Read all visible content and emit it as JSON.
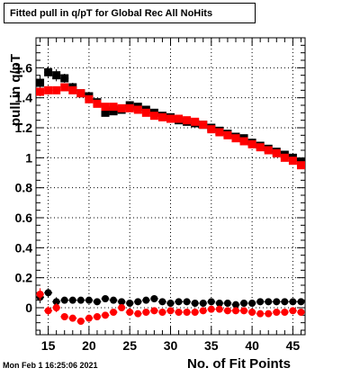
{
  "chart_data": {
    "type": "scatter",
    "title": "Fitted pull in q/pT for Global Rec All NoHits",
    "xlabel": "No. of Fit Points",
    "ylabel": "pull in q/pT",
    "timestamp": "Mon Feb  1 16:25:06 2021",
    "xlim": [
      13.5,
      46.5
    ],
    "ylim": [
      -0.18,
      1.8
    ],
    "grid": true,
    "x_ticks": [
      15,
      20,
      25,
      30,
      35,
      40,
      45
    ],
    "y_ticks": [
      0,
      0.2,
      0.4,
      0.6,
      0.8,
      1,
      1.2,
      1.4,
      1.6
    ],
    "y_tick_labels": [
      "0",
      "0.2",
      "0.4",
      "0.6",
      "0.8",
      "1",
      "1.2",
      "1.4",
      "1.6"
    ],
    "series": [
      {
        "marker": "square",
        "color": "#000000",
        "x": [
          14,
          15,
          16,
          17,
          18,
          19,
          20,
          21,
          22,
          23,
          24,
          25,
          26,
          27,
          28,
          29,
          30,
          31,
          32,
          33,
          34,
          35,
          36,
          37,
          38,
          39,
          40,
          41,
          42,
          43,
          44,
          45,
          46
        ],
        "y": [
          1.5,
          1.57,
          1.55,
          1.53,
          1.47,
          1.43,
          1.41,
          1.37,
          1.3,
          1.31,
          1.32,
          1.35,
          1.34,
          1.32,
          1.3,
          1.28,
          1.27,
          1.25,
          1.24,
          1.23,
          1.22,
          1.2,
          1.18,
          1.16,
          1.14,
          1.13,
          1.1,
          1.08,
          1.06,
          1.04,
          1.02,
          1.0,
          0.97
        ],
        "yerr": [
          0.05,
          0.04,
          0.04,
          0.03,
          0.03,
          0.02,
          0.02,
          0.02,
          0.01,
          0.01,
          0.01,
          0.01,
          0.01,
          0.01,
          0.01,
          0.01,
          0.01,
          0.01,
          0.01,
          0.01,
          0.01,
          0.01,
          0.01,
          0.01,
          0.01,
          0.01,
          0.01,
          0.01,
          0.01,
          0.01,
          0.01,
          0.01,
          0.01
        ]
      },
      {
        "marker": "square",
        "color": "#ff0000",
        "x": [
          14,
          15,
          16,
          17,
          18,
          19,
          20,
          21,
          22,
          23,
          24,
          25,
          26,
          27,
          28,
          29,
          30,
          31,
          32,
          33,
          34,
          35,
          36,
          37,
          38,
          39,
          40,
          41,
          42,
          43,
          44,
          45,
          46
        ],
        "y": [
          1.44,
          1.45,
          1.45,
          1.47,
          1.45,
          1.43,
          1.39,
          1.36,
          1.34,
          1.34,
          1.33,
          1.33,
          1.32,
          1.3,
          1.28,
          1.27,
          1.26,
          1.26,
          1.25,
          1.24,
          1.22,
          1.19,
          1.17,
          1.15,
          1.13,
          1.11,
          1.09,
          1.07,
          1.05,
          1.03,
          1.0,
          0.98,
          0.95
        ],
        "yerr": [
          0.03,
          0.03,
          0.02,
          0.02,
          0.02,
          0.02,
          0.02,
          0.01,
          0.01,
          0.01,
          0.01,
          0.01,
          0.01,
          0.01,
          0.01,
          0.01,
          0.01,
          0.01,
          0.01,
          0.01,
          0.01,
          0.01,
          0.01,
          0.01,
          0.01,
          0.01,
          0.01,
          0.01,
          0.01,
          0.01,
          0.01,
          0.01,
          0.01
        ]
      },
      {
        "marker": "circle",
        "color": "#000000",
        "x": [
          14,
          15,
          16,
          17,
          18,
          19,
          20,
          21,
          22,
          23,
          24,
          25,
          26,
          27,
          28,
          29,
          30,
          31,
          32,
          33,
          34,
          35,
          36,
          37,
          38,
          39,
          40,
          41,
          42,
          43,
          44,
          45,
          46
        ],
        "y": [
          0.07,
          0.1,
          0.04,
          0.05,
          0.05,
          0.05,
          0.05,
          0.04,
          0.06,
          0.05,
          0.04,
          0.03,
          0.04,
          0.05,
          0.06,
          0.04,
          0.03,
          0.04,
          0.04,
          0.03,
          0.03,
          0.04,
          0.03,
          0.03,
          0.02,
          0.03,
          0.03,
          0.04,
          0.04,
          0.04,
          0.04,
          0.04,
          0.04
        ],
        "yerr": [
          0.04,
          0.03,
          0.03,
          0.02,
          0.02,
          0.02,
          0.02,
          0.02,
          0.02,
          0.01,
          0.01,
          0.01,
          0.01,
          0.01,
          0.01,
          0.01,
          0.01,
          0.01,
          0.01,
          0.01,
          0.01,
          0.01,
          0.01,
          0.01,
          0.01,
          0.01,
          0.01,
          0.01,
          0.01,
          0.01,
          0.01,
          0.01,
          0.01
        ]
      },
      {
        "marker": "circle",
        "color": "#ff0000",
        "x": [
          14,
          15,
          16,
          17,
          18,
          19,
          20,
          21,
          22,
          23,
          24,
          25,
          26,
          27,
          28,
          29,
          30,
          31,
          32,
          33,
          34,
          35,
          36,
          37,
          38,
          39,
          40,
          41,
          42,
          43,
          44,
          45,
          46
        ],
        "y": [
          0.09,
          -0.02,
          0.0,
          -0.06,
          -0.07,
          -0.09,
          -0.07,
          -0.06,
          -0.05,
          -0.03,
          0.0,
          -0.03,
          -0.04,
          -0.03,
          -0.02,
          -0.03,
          -0.02,
          -0.03,
          -0.03,
          -0.03,
          -0.02,
          -0.01,
          -0.01,
          -0.02,
          -0.02,
          -0.02,
          -0.03,
          -0.04,
          -0.04,
          -0.03,
          -0.03,
          -0.02,
          -0.03
        ],
        "yerr": [
          0.04,
          0.03,
          0.03,
          0.02,
          0.02,
          0.02,
          0.02,
          0.02,
          0.01,
          0.01,
          0.01,
          0.01,
          0.01,
          0.01,
          0.01,
          0.01,
          0.01,
          0.01,
          0.01,
          0.01,
          0.01,
          0.01,
          0.01,
          0.01,
          0.01,
          0.01,
          0.01,
          0.01,
          0.01,
          0.01,
          0.01,
          0.01,
          0.01
        ]
      }
    ]
  }
}
